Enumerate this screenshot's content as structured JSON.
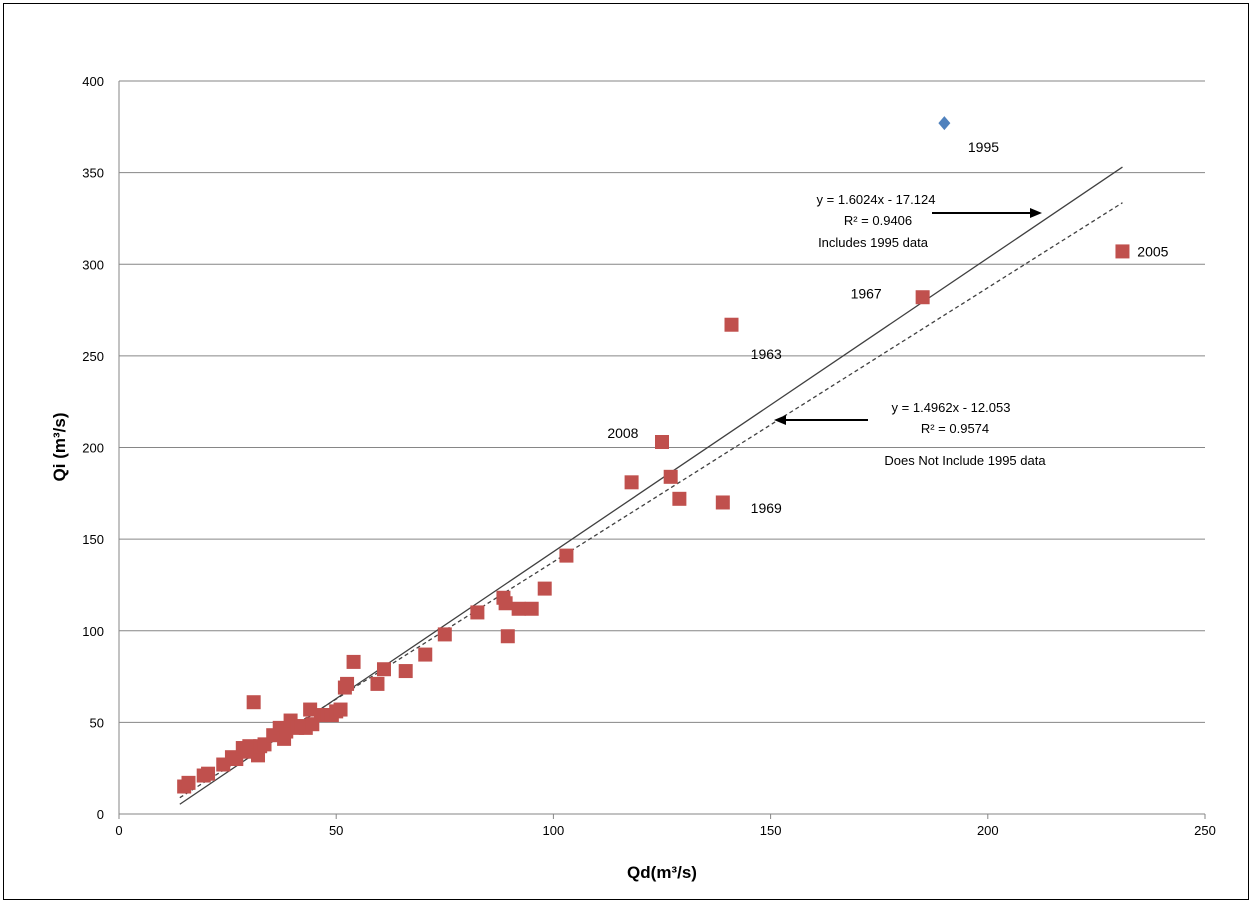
{
  "chart_data": {
    "type": "scatter",
    "xlabel": "Qd(m³/s)",
    "ylabel": "Qi (m³/s)",
    "xlim": [
      0,
      250
    ],
    "ylim": [
      0,
      400
    ],
    "x_ticks": [
      "0",
      "50",
      "100",
      "150",
      "200",
      "250"
    ],
    "y_ticks": [
      "0",
      "50",
      "100",
      "150",
      "200",
      "250",
      "300",
      "350",
      "400"
    ],
    "grid": "horizontal",
    "legend": "none",
    "series": [
      {
        "marker": "diamond",
        "color": "#4F81BD",
        "points": [
          [
            190,
            377
          ]
        ]
      },
      {
        "marker": "square",
        "color": "#C0504D",
        "points": [
          [
            15,
            15
          ],
          [
            16,
            17
          ],
          [
            19.5,
            21
          ],
          [
            20.5,
            22
          ],
          [
            24,
            27
          ],
          [
            26,
            31
          ],
          [
            27,
            30
          ],
          [
            28.5,
            36
          ],
          [
            29.5,
            34
          ],
          [
            30,
            37
          ],
          [
            31,
            61
          ],
          [
            32,
            32
          ],
          [
            32.5,
            37
          ],
          [
            33.5,
            38
          ],
          [
            35.5,
            43
          ],
          [
            37,
            47
          ],
          [
            38,
            41
          ],
          [
            38.5,
            45
          ],
          [
            39.5,
            51
          ],
          [
            41,
            47
          ],
          [
            42,
            48
          ],
          [
            43,
            47
          ],
          [
            44,
            57
          ],
          [
            44.5,
            49
          ],
          [
            46.5,
            54
          ],
          [
            48,
            54
          ],
          [
            49,
            54
          ],
          [
            50,
            56
          ],
          [
            51,
            57
          ],
          [
            52,
            69
          ],
          [
            52.5,
            71
          ],
          [
            54,
            83
          ],
          [
            59.5,
            71
          ],
          [
            61,
            79
          ],
          [
            66,
            78
          ],
          [
            70.5,
            87
          ],
          [
            75,
            98
          ],
          [
            82.5,
            110
          ],
          [
            88.5,
            118
          ],
          [
            89,
            115
          ],
          [
            89.5,
            97
          ],
          [
            92,
            112
          ],
          [
            95,
            112
          ],
          [
            98,
            123
          ],
          [
            103,
            141
          ],
          [
            118,
            181
          ],
          [
            125,
            203
          ],
          [
            127,
            184
          ],
          [
            129,
            172
          ],
          [
            139,
            170
          ],
          [
            141,
            267
          ],
          [
            185,
            282
          ],
          [
            231,
            307
          ]
        ]
      }
    ],
    "trendlines": [
      {
        "style": "solid",
        "slope": 1.6024,
        "intercept": -17.124,
        "x_range": [
          14,
          231
        ],
        "equation": "y = 1.6024x - 17.124",
        "r2": "R² = 0.9406",
        "note": "Includes 1995  data"
      },
      {
        "style": "dashed",
        "slope": 1.4962,
        "intercept": -12.053,
        "x_range": [
          14,
          231
        ],
        "equation": "y = 1.4962x - 12.053",
        "r2": "R² = 0.9574",
        "note": "Does Not Include 1995  data"
      }
    ],
    "point_labels": [
      {
        "text": "1995",
        "x": 199,
        "y": 364
      },
      {
        "text": "2005",
        "x": 238,
        "y": 307
      },
      {
        "text": "1967",
        "x": 172,
        "y": 284
      },
      {
        "text": "1963",
        "x": 149,
        "y": 251
      },
      {
        "text": "2008",
        "x": 116,
        "y": 208
      },
      {
        "text": "1969",
        "x": 149,
        "y": 167
      }
    ]
  },
  "colors": {
    "diamond": "#4F81BD",
    "square": "#C0504D",
    "grid": "#868686",
    "trend": "#404040"
  }
}
